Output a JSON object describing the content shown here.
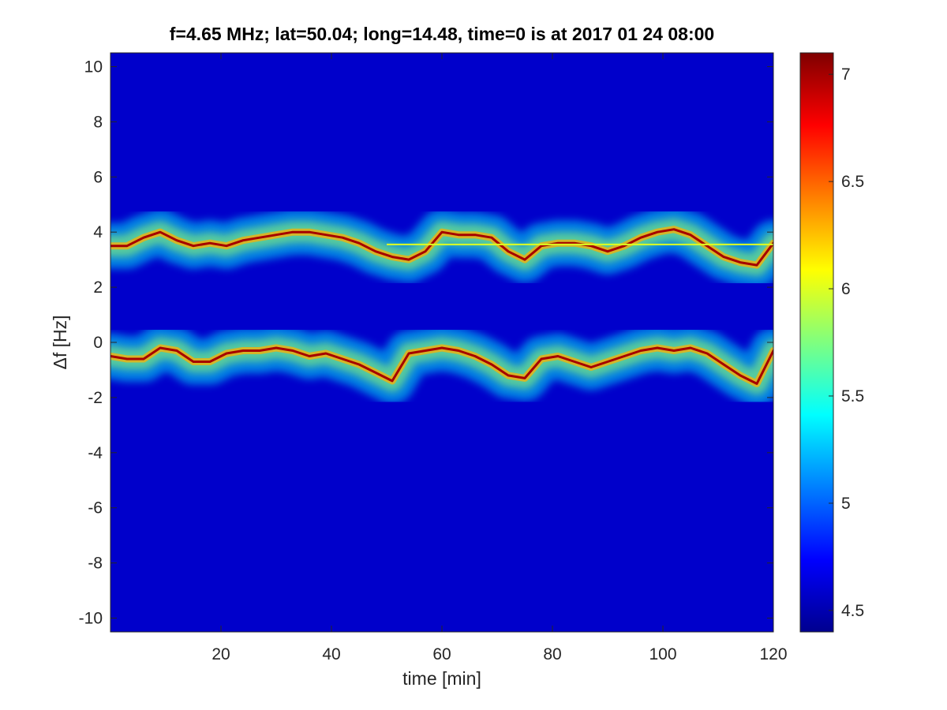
{
  "chart_data": {
    "type": "heatmap",
    "title": "f=4.65 MHz;  lat=50.04; long=14.48, time=0 is at 2017 01 24 08:00",
    "xlabel": "time [min]",
    "ylabel": "Δf [Hz]",
    "xlim": [
      0,
      120
    ],
    "ylim": [
      -10.5,
      10.5
    ],
    "xticks": [
      20,
      40,
      60,
      80,
      100,
      120
    ],
    "yticks": [
      -10,
      -8,
      -6,
      -4,
      -2,
      0,
      2,
      4,
      6,
      8,
      10
    ],
    "colorbar": {
      "colormap": "jet",
      "clim": [
        4.4,
        7.1
      ],
      "ticks": [
        4.5,
        5,
        5.5,
        6,
        6.5,
        7
      ]
    },
    "background_level": 4.6,
    "grid": false,
    "traces": [
      {
        "x": [
          0,
          3,
          6,
          9,
          12,
          15,
          18,
          21,
          24,
          27,
          30,
          33,
          36,
          39,
          42,
          45,
          48,
          51,
          54,
          57,
          60,
          63,
          66,
          69,
          72,
          75,
          78,
          81,
          84,
          87,
          90,
          93,
          96,
          99,
          102,
          105,
          108,
          111,
          114,
          117,
          120
        ],
        "y": [
          3.5,
          3.5,
          3.8,
          4.0,
          3.7,
          3.5,
          3.6,
          3.5,
          3.7,
          3.8,
          3.9,
          4.0,
          4.0,
          3.9,
          3.8,
          3.6,
          3.3,
          3.1,
          3.0,
          3.3,
          4.0,
          3.9,
          3.9,
          3.8,
          3.3,
          3.0,
          3.5,
          3.6,
          3.6,
          3.5,
          3.3,
          3.5,
          3.8,
          4.0,
          4.1,
          3.9,
          3.5,
          3.1,
          2.9,
          2.8,
          3.6
        ]
      },
      {
        "x": [
          0,
          3,
          6,
          9,
          12,
          15,
          18,
          21,
          24,
          27,
          30,
          33,
          36,
          39,
          42,
          45,
          48,
          51,
          54,
          57,
          60,
          63,
          66,
          69,
          72,
          75,
          78,
          81,
          84,
          87,
          90,
          93,
          96,
          99,
          102,
          105,
          108,
          111,
          114,
          117,
          120
        ],
        "y": [
          -0.5,
          -0.6,
          -0.6,
          -0.2,
          -0.3,
          -0.7,
          -0.7,
          -0.4,
          -0.3,
          -0.3,
          -0.2,
          -0.3,
          -0.5,
          -0.4,
          -0.6,
          -0.8,
          -1.1,
          -1.4,
          -0.4,
          -0.3,
          -0.2,
          -0.3,
          -0.5,
          -0.8,
          -1.2,
          -1.3,
          -0.6,
          -0.5,
          -0.7,
          -0.9,
          -0.7,
          -0.5,
          -0.3,
          -0.2,
          -0.3,
          -0.2,
          -0.4,
          -0.8,
          -1.2,
          -1.5,
          -0.3
        ]
      }
    ],
    "reference_line": {
      "y": 3.55,
      "x_range": [
        50,
        120
      ]
    }
  }
}
